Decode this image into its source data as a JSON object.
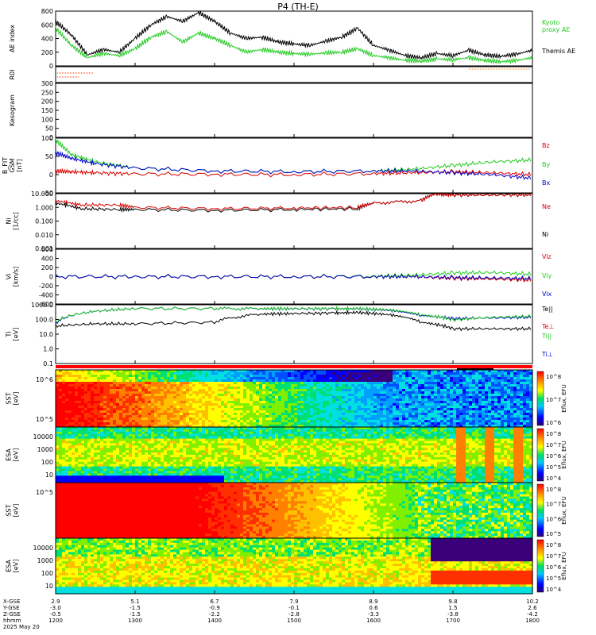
{
  "title": "P4 (TH-E)",
  "colors": {
    "ae": "#000000",
    "kyoto": "#22cc22",
    "bz": "#dd0000",
    "by": "#22cc22",
    "bx": "#0000cc",
    "orange": "#ff8c00",
    "roi": "#ff3b00"
  },
  "legend": {
    "kyoto": "Kyoto\nproxy AE",
    "themis": "Themis AE",
    "bz": "Bz",
    "by": "By",
    "bx": "Bx",
    "ne": "Ne",
    "ni": "Ni",
    "viz": "Viz",
    "viy": "Viy",
    "vix": "Vix",
    "tel": "Te||",
    "teperp": "Te⊥",
    "tipar": "Ti||",
    "tiperp": "Ti⊥"
  },
  "colorbar_label": "Eflux, EFU",
  "chart_data": [
    {
      "type": "line",
      "ylabel": "AE index",
      "ylim": [
        0,
        800
      ],
      "yticks": [
        "800",
        "600",
        "400",
        "200",
        "0"
      ],
      "series": [
        {
          "name": "Themis AE",
          "x": [
            12.0,
            12.2,
            12.4,
            12.6,
            12.8,
            13.0,
            13.2,
            13.4,
            13.6,
            13.8,
            14.0,
            14.2,
            14.4,
            14.6,
            14.8,
            15.0,
            15.2,
            15.4,
            15.6,
            15.8,
            16.0,
            16.2,
            16.4,
            16.6,
            16.8,
            17.0,
            17.2,
            17.4,
            17.6,
            17.8,
            18.0
          ],
          "y": [
            650,
            450,
            160,
            240,
            200,
            400,
            600,
            720,
            650,
            780,
            650,
            480,
            400,
            420,
            350,
            320,
            300,
            360,
            420,
            550,
            300,
            230,
            150,
            120,
            180,
            150,
            230,
            160,
            140,
            170,
            230
          ]
        },
        {
          "name": "Kyoto proxy AE",
          "x": [
            12.0,
            12.2,
            12.4,
            12.6,
            12.8,
            13.0,
            13.2,
            13.4,
            13.6,
            13.8,
            14.0,
            14.2,
            14.4,
            14.6,
            14.8,
            15.0,
            15.2,
            15.4,
            15.6,
            15.8,
            16.0,
            16.2,
            16.4,
            16.6,
            16.8,
            17.0,
            17.2,
            17.4,
            17.6,
            17.8,
            18.0
          ],
          "y": [
            550,
            300,
            120,
            180,
            150,
            250,
            420,
            500,
            350,
            480,
            400,
            300,
            200,
            240,
            200,
            180,
            170,
            190,
            200,
            250,
            150,
            120,
            80,
            70,
            100,
            90,
            120,
            80,
            60,
            80,
            120
          ]
        }
      ]
    },
    {
      "type": "line",
      "ylabel": "R0I"
    },
    {
      "type": "line",
      "ylabel": "Kesogram",
      "ylim": [
        0,
        300
      ],
      "yticks": [
        "300",
        "250",
        "200",
        "150",
        "100",
        "50",
        "0"
      ]
    },
    {
      "type": "line",
      "ylabel": "B_FIT\nGSM\n[nT]",
      "ylim": [
        -50,
        100
      ],
      "yticks": [
        "100",
        "50",
        "0",
        "-50"
      ],
      "series": [
        {
          "name": "Bz",
          "x": [
            12.0,
            12.2,
            12.5,
            13.0,
            14.0,
            15.0,
            16.0,
            16.5,
            17.0,
            17.5,
            18.0
          ],
          "y": [
            10,
            8,
            5,
            2,
            1,
            0,
            3,
            5,
            8,
            5,
            0
          ]
        },
        {
          "name": "By",
          "x": [
            12.0,
            12.2,
            12.5,
            13.0,
            14.0,
            15.0,
            16.0,
            16.5,
            17.0,
            17.5,
            18.0
          ],
          "y": [
            95,
            55,
            35,
            18,
            10,
            8,
            10,
            15,
            25,
            35,
            40
          ]
        },
        {
          "name": "Bx",
          "x": [
            12.0,
            12.2,
            12.5,
            13.0,
            14.0,
            15.0,
            16.0,
            16.5,
            17.0,
            17.5,
            18.0
          ],
          "y": [
            60,
            45,
            30,
            18,
            10,
            8,
            10,
            10,
            5,
            0,
            -10
          ]
        }
      ]
    },
    {
      "type": "line",
      "ylabel": "Ni\n[1/cc]",
      "scale": "log",
      "yticks": [
        "10.000",
        "1.000",
        "0.100",
        "0.010",
        "0.001"
      ],
      "series": [
        {
          "name": "Ne",
          "x": [
            12.0,
            12.3,
            12.8,
            13.0,
            14.0,
            15.0,
            15.8,
            16.0,
            16.6,
            16.8,
            17.0,
            17.5,
            18.0
          ],
          "y": [
            3,
            1.5,
            1.5,
            1.0,
            0.8,
            0.9,
            1.0,
            2,
            3,
            10,
            8,
            8,
            8
          ]
        },
        {
          "name": "Ni",
          "x": [
            12.0,
            12.3,
            12.8,
            13.0,
            14.0,
            15.0,
            15.8,
            16.0,
            16.6,
            16.8,
            17.0,
            17.5,
            18.0
          ],
          "y": [
            2,
            0.8,
            0.7,
            0.7,
            0.6,
            0.7,
            0.8,
            2,
            3,
            10,
            8,
            8,
            8
          ]
        }
      ]
    },
    {
      "type": "line",
      "ylabel": "Vi\n[km/s]",
      "ylim": [
        -600,
        600
      ],
      "yticks": [
        "600",
        "400",
        "200",
        "0",
        "-200",
        "-400",
        "-600"
      ],
      "series": [
        {
          "name": "Viz",
          "x": [
            12.0,
            13.0,
            14.0,
            15.0,
            16.0,
            16.5,
            17.0,
            17.5,
            18.0
          ],
          "y": [
            0,
            0,
            0,
            0,
            0,
            0,
            -40,
            -50,
            -80
          ]
        },
        {
          "name": "Viy",
          "x": [
            12.0,
            13.0,
            14.0,
            15.0,
            16.0,
            16.5,
            17.0,
            17.5,
            18.0
          ],
          "y": [
            0,
            0,
            0,
            0,
            10,
            30,
            80,
            90,
            50
          ]
        },
        {
          "name": "Vix",
          "x": [
            12.0,
            13.0,
            14.0,
            15.0,
            16.0,
            16.5,
            17.0,
            17.5,
            18.0
          ],
          "y": [
            0,
            0,
            0,
            0,
            0,
            0,
            -20,
            -30,
            -40
          ]
        }
      ]
    },
    {
      "type": "line",
      "ylabel": "Ti\n[eV]",
      "scale": "log",
      "yticks": [
        "1000.0",
        "100.0",
        "10.0",
        "1.0",
        "0.1"
      ],
      "series": [
        {
          "name": "Te||",
          "x": [
            12.0,
            12.5,
            13.0,
            14.0,
            14.6,
            15.0,
            15.5,
            15.8,
            16.2,
            16.6,
            17.0,
            17.5,
            18.0
          ],
          "y": [
            100,
            150,
            150,
            200,
            900,
            1000,
            1100,
            1200,
            800,
            200,
            60,
            60,
            60
          ]
        },
        {
          "name": "Ti||",
          "x": [
            12.0,
            12.5,
            13.0,
            14.0,
            14.6,
            15.0,
            15.5,
            15.8,
            16.2,
            16.6,
            17.0,
            17.5,
            18.0
          ],
          "y": [
            200,
            1500,
            2500,
            2500,
            2500,
            2500,
            2500,
            2500,
            2000,
            800,
            300,
            500,
            600
          ]
        },
        {
          "name": "Ti⊥",
          "x": [
            12.0,
            12.5,
            13.0,
            14.0,
            14.6,
            15.0,
            15.5,
            15.8,
            16.2,
            16.6,
            17.0,
            17.5,
            18.0
          ],
          "y": [
            150,
            1500,
            2500,
            2500,
            2400,
            2400,
            2400,
            2400,
            1800,
            700,
            400,
            450,
            500
          ]
        }
      ]
    },
    {
      "type": "heatmap",
      "ylabel": "SST\n[eV]",
      "yticks": [
        "10^6",
        "10^5"
      ],
      "cbar_ticks": [
        "10^8",
        "10^7",
        "10^6"
      ]
    },
    {
      "type": "heatmap",
      "ylabel": "ESA\n[eV]",
      "yticks": [
        "10000",
        "1000",
        "100",
        "10"
      ],
      "cbar_ticks": [
        "10^8",
        "10^7",
        "10^6",
        "10^5",
        "10^4"
      ]
    },
    {
      "type": "heatmap",
      "ylabel": "SST\n[eV]",
      "yticks": [
        "10^5"
      ],
      "cbar_ticks": [
        "10^8",
        "10^7",
        "10^6",
        "10^5"
      ]
    },
    {
      "type": "heatmap",
      "ylabel": "ESA\n[eV]",
      "yticks": [
        "10000",
        "1000",
        "100",
        "10"
      ],
      "cbar_ticks": [
        "10^8",
        "10^7",
        "10^6",
        "10^5",
        "10^4"
      ]
    }
  ],
  "xaxis": {
    "labels": [
      "X-GSE",
      "Y-GSE",
      "Z-GSE",
      "hhmm",
      "2025 May 20"
    ],
    "ticks": [
      {
        "x": "2.9",
        "y": "-3.0",
        "z": "-0.5",
        "t": "1200"
      },
      {
        "x": "5.1",
        "y": "-1.5",
        "z": "-1.5",
        "t": "1300"
      },
      {
        "x": "6.7",
        "y": "-0.9",
        "z": "-2.2",
        "t": "1400"
      },
      {
        "x": "7.9",
        "y": "-0.1",
        "z": "-2.8",
        "t": "1500"
      },
      {
        "x": "8.9",
        "y": "0.6",
        "z": "-3.3",
        "t": "1600"
      },
      {
        "x": "9.8",
        "y": "1.5",
        "z": "-3.8",
        "t": "1700"
      },
      {
        "x": "10.2",
        "y": "2.6",
        "z": "-4.2",
        "t": "1800"
      }
    ]
  }
}
